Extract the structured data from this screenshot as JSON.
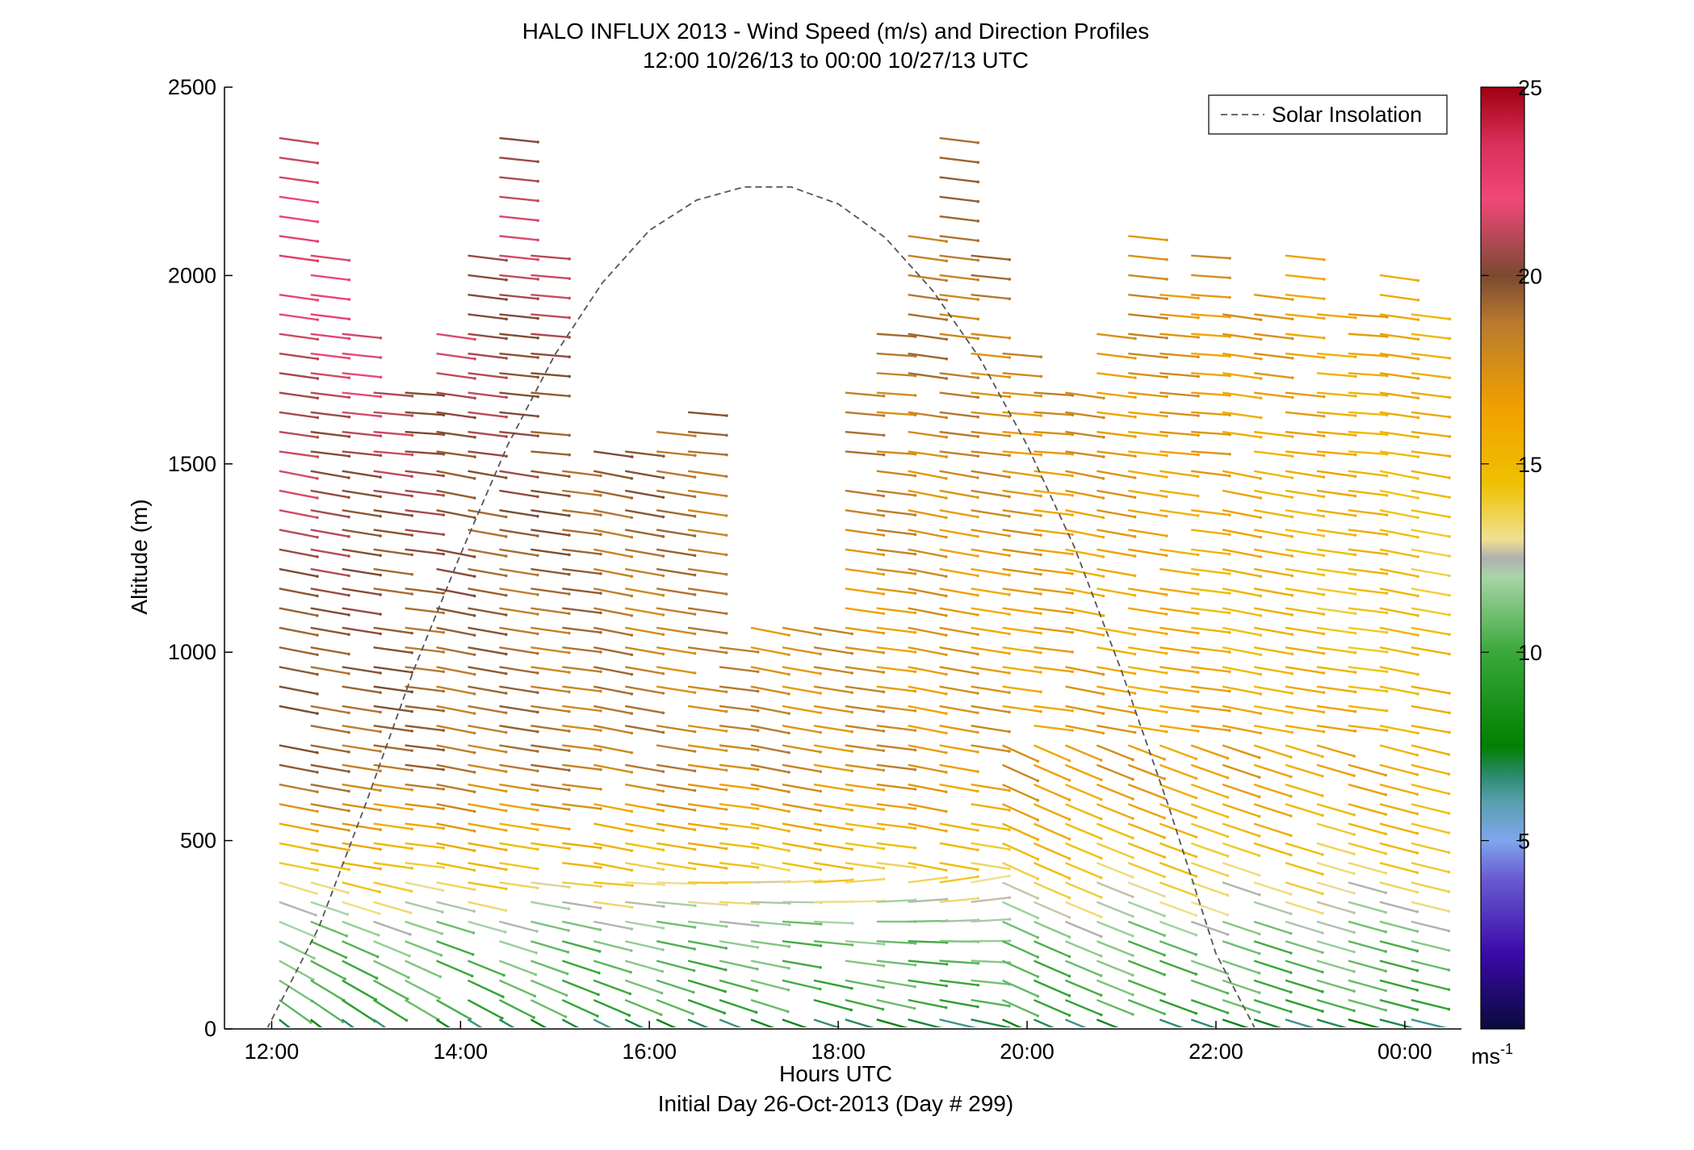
{
  "chart_data": {
    "type": "scatter",
    "title": "HALO INFLUX 2013 - Wind Speed (m/s) and Direction Profiles",
    "subtitle": "12:00 10/26/13 to 00:00 10/27/13  UTC",
    "xlabel": "Hours UTC",
    "xlabel2": "Initial Day 26-Oct-2013 (Day # 299)",
    "ylabel": "Altitude (m)",
    "xlim": [
      11.5,
      24.6
    ],
    "ylim": [
      0,
      2500
    ],
    "xticks": [
      12,
      14,
      16,
      18,
      20,
      22,
      24
    ],
    "xtick_labels": [
      "12:00",
      "14:00",
      "16:00",
      "18:00",
      "20:00",
      "22:00",
      "00:00"
    ],
    "yticks": [
      0,
      500,
      1000,
      1500,
      2000,
      2500
    ],
    "ytick_labels": [
      "0",
      "500",
      "1000",
      "1500",
      "2000",
      "2500"
    ],
    "colorbar": {
      "min": 0,
      "max": 25,
      "ticks": [
        5,
        10,
        15,
        20,
        25
      ],
      "tick_labels": [
        "5",
        "10",
        "15",
        "20",
        "25"
      ],
      "unit_label": "ms",
      "unit_exponent": "-1"
    },
    "legend": {
      "position": "top-right",
      "entries": [
        "Solar Insolation"
      ]
    },
    "solar_insolation": {
      "style": "dashed",
      "color": "#555555",
      "x": [
        11.95,
        12.5,
        13.0,
        13.5,
        14.0,
        14.5,
        15.0,
        15.5,
        16.0,
        16.5,
        17.0,
        17.5,
        18.0,
        18.5,
        19.0,
        19.5,
        20.0,
        20.5,
        21.0,
        21.5,
        22.0,
        22.5,
        23.0,
        23.1
      ],
      "y": [
        0,
        270,
        600,
        950,
        1260,
        1550,
        1790,
        1980,
        2120,
        2200,
        2235,
        2235,
        2190,
        2100,
        1960,
        1780,
        1550,
        1280,
        950,
        590,
        200,
        -40,
        -40,
        -40
      ]
    },
    "wind_profiles": {
      "x_start": 12.08,
      "x_step": 0.333,
      "count": 37,
      "speed_by_height": [
        {
          "alt": 0,
          "speed": 4
        },
        {
          "alt": 60,
          "speed": 10
        },
        {
          "alt": 250,
          "speed": 11
        },
        {
          "alt": 450,
          "speed": 15
        },
        {
          "alt": 700,
          "speed": 19
        },
        {
          "alt": 1100,
          "speed": 20
        },
        {
          "alt": 1500,
          "speed": 21
        },
        {
          "alt": 2000,
          "speed": 22
        }
      ]
    }
  }
}
